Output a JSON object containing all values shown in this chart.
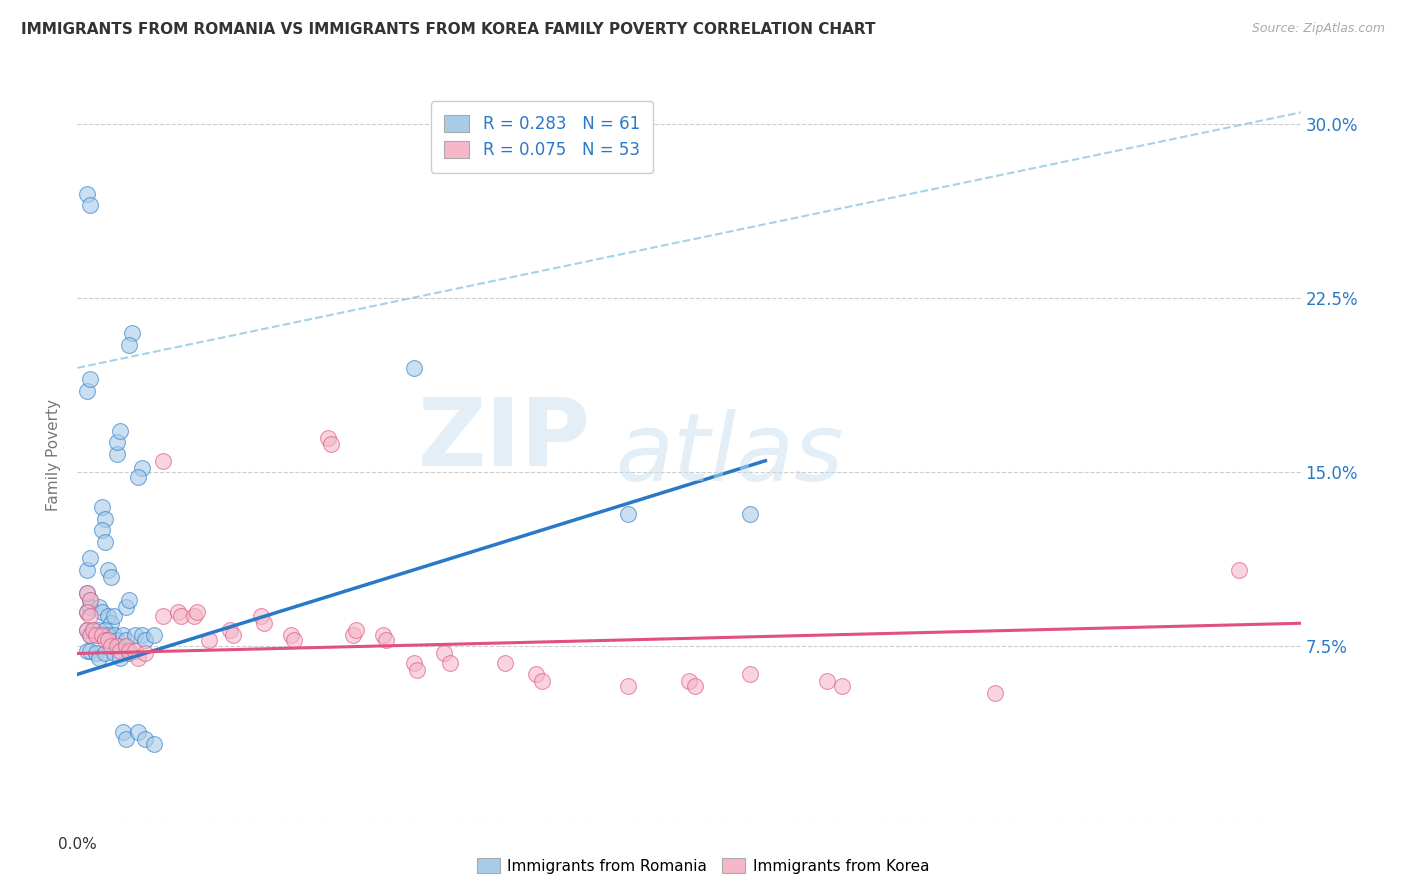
{
  "title": "IMMIGRANTS FROM ROMANIA VS IMMIGRANTS FROM KOREA FAMILY POVERTY CORRELATION CHART",
  "source": "Source: ZipAtlas.com",
  "ylabel": "Family Poverty",
  "yticks": [
    0.0,
    0.075,
    0.15,
    0.225,
    0.3
  ],
  "ytick_labels": [
    "",
    "7.5%",
    "15.0%",
    "22.5%",
    "30.0%"
  ],
  "xlim": [
    0.0,
    0.4
  ],
  "ylim": [
    0.0,
    0.315
  ],
  "romania_R": 0.283,
  "romania_N": 61,
  "korea_R": 0.075,
  "korea_N": 53,
  "romania_color": "#a8cce8",
  "korea_color": "#f4b8c8",
  "romania_line_color": "#2979c8",
  "korea_line_color": "#e05080",
  "romania_line": [
    [
      0.0,
      0.063
    ],
    [
      0.225,
      0.155
    ]
  ],
  "korea_line": [
    [
      0.0,
      0.072
    ],
    [
      0.4,
      0.085
    ]
  ],
  "dash_line": [
    [
      0.0,
      0.195
    ],
    [
      0.4,
      0.305
    ]
  ],
  "romania_scatter": [
    [
      0.003,
      0.27
    ],
    [
      0.004,
      0.265
    ],
    [
      0.018,
      0.21
    ],
    [
      0.017,
      0.205
    ],
    [
      0.003,
      0.185
    ],
    [
      0.004,
      0.19
    ],
    [
      0.013,
      0.158
    ],
    [
      0.013,
      0.163
    ],
    [
      0.014,
      0.168
    ],
    [
      0.021,
      0.152
    ],
    [
      0.02,
      0.148
    ],
    [
      0.008,
      0.135
    ],
    [
      0.009,
      0.13
    ],
    [
      0.008,
      0.125
    ],
    [
      0.009,
      0.12
    ],
    [
      0.11,
      0.195
    ],
    [
      0.18,
      0.132
    ],
    [
      0.22,
      0.132
    ],
    [
      0.003,
      0.108
    ],
    [
      0.004,
      0.113
    ],
    [
      0.01,
      0.108
    ],
    [
      0.011,
      0.105
    ],
    [
      0.003,
      0.098
    ],
    [
      0.004,
      0.095
    ],
    [
      0.003,
      0.09
    ],
    [
      0.004,
      0.092
    ],
    [
      0.007,
      0.092
    ],
    [
      0.008,
      0.09
    ],
    [
      0.01,
      0.088
    ],
    [
      0.011,
      0.085
    ],
    [
      0.012,
      0.088
    ],
    [
      0.016,
      0.092
    ],
    [
      0.017,
      0.095
    ],
    [
      0.003,
      0.082
    ],
    [
      0.004,
      0.08
    ],
    [
      0.005,
      0.082
    ],
    [
      0.007,
      0.082
    ],
    [
      0.007,
      0.08
    ],
    [
      0.009,
      0.082
    ],
    [
      0.01,
      0.08
    ],
    [
      0.012,
      0.08
    ],
    [
      0.013,
      0.078
    ],
    [
      0.015,
      0.08
    ],
    [
      0.016,
      0.078
    ],
    [
      0.019,
      0.08
    ],
    [
      0.021,
      0.08
    ],
    [
      0.022,
      0.078
    ],
    [
      0.025,
      0.08
    ],
    [
      0.003,
      0.073
    ],
    [
      0.004,
      0.073
    ],
    [
      0.006,
      0.072
    ],
    [
      0.007,
      0.07
    ],
    [
      0.009,
      0.072
    ],
    [
      0.012,
      0.072
    ],
    [
      0.014,
      0.07
    ],
    [
      0.017,
      0.072
    ],
    [
      0.015,
      0.038
    ],
    [
      0.016,
      0.035
    ],
    [
      0.02,
      0.038
    ],
    [
      0.022,
      0.035
    ],
    [
      0.025,
      0.033
    ]
  ],
  "korea_scatter": [
    [
      0.003,
      0.098
    ],
    [
      0.004,
      0.095
    ],
    [
      0.003,
      0.09
    ],
    [
      0.004,
      0.088
    ],
    [
      0.003,
      0.082
    ],
    [
      0.004,
      0.08
    ],
    [
      0.005,
      0.082
    ],
    [
      0.006,
      0.08
    ],
    [
      0.008,
      0.08
    ],
    [
      0.009,
      0.078
    ],
    [
      0.01,
      0.078
    ],
    [
      0.011,
      0.075
    ],
    [
      0.013,
      0.075
    ],
    [
      0.014,
      0.073
    ],
    [
      0.016,
      0.075
    ],
    [
      0.017,
      0.073
    ],
    [
      0.019,
      0.073
    ],
    [
      0.02,
      0.07
    ],
    [
      0.022,
      0.072
    ],
    [
      0.028,
      0.155
    ],
    [
      0.028,
      0.088
    ],
    [
      0.033,
      0.09
    ],
    [
      0.034,
      0.088
    ],
    [
      0.038,
      0.088
    ],
    [
      0.039,
      0.09
    ],
    [
      0.043,
      0.078
    ],
    [
      0.05,
      0.082
    ],
    [
      0.051,
      0.08
    ],
    [
      0.06,
      0.088
    ],
    [
      0.061,
      0.085
    ],
    [
      0.07,
      0.08
    ],
    [
      0.071,
      0.078
    ],
    [
      0.082,
      0.165
    ],
    [
      0.083,
      0.162
    ],
    [
      0.09,
      0.08
    ],
    [
      0.091,
      0.082
    ],
    [
      0.1,
      0.08
    ],
    [
      0.101,
      0.078
    ],
    [
      0.11,
      0.068
    ],
    [
      0.111,
      0.065
    ],
    [
      0.12,
      0.072
    ],
    [
      0.122,
      0.068
    ],
    [
      0.14,
      0.068
    ],
    [
      0.15,
      0.063
    ],
    [
      0.152,
      0.06
    ],
    [
      0.18,
      0.058
    ],
    [
      0.2,
      0.06
    ],
    [
      0.202,
      0.058
    ],
    [
      0.22,
      0.063
    ],
    [
      0.245,
      0.06
    ],
    [
      0.25,
      0.058
    ],
    [
      0.3,
      0.055
    ],
    [
      0.38,
      0.108
    ]
  ],
  "watermark_zip": "ZIP",
  "watermark_atlas": "atlas",
  "background_color": "#ffffff",
  "grid_color": "#cccccc"
}
